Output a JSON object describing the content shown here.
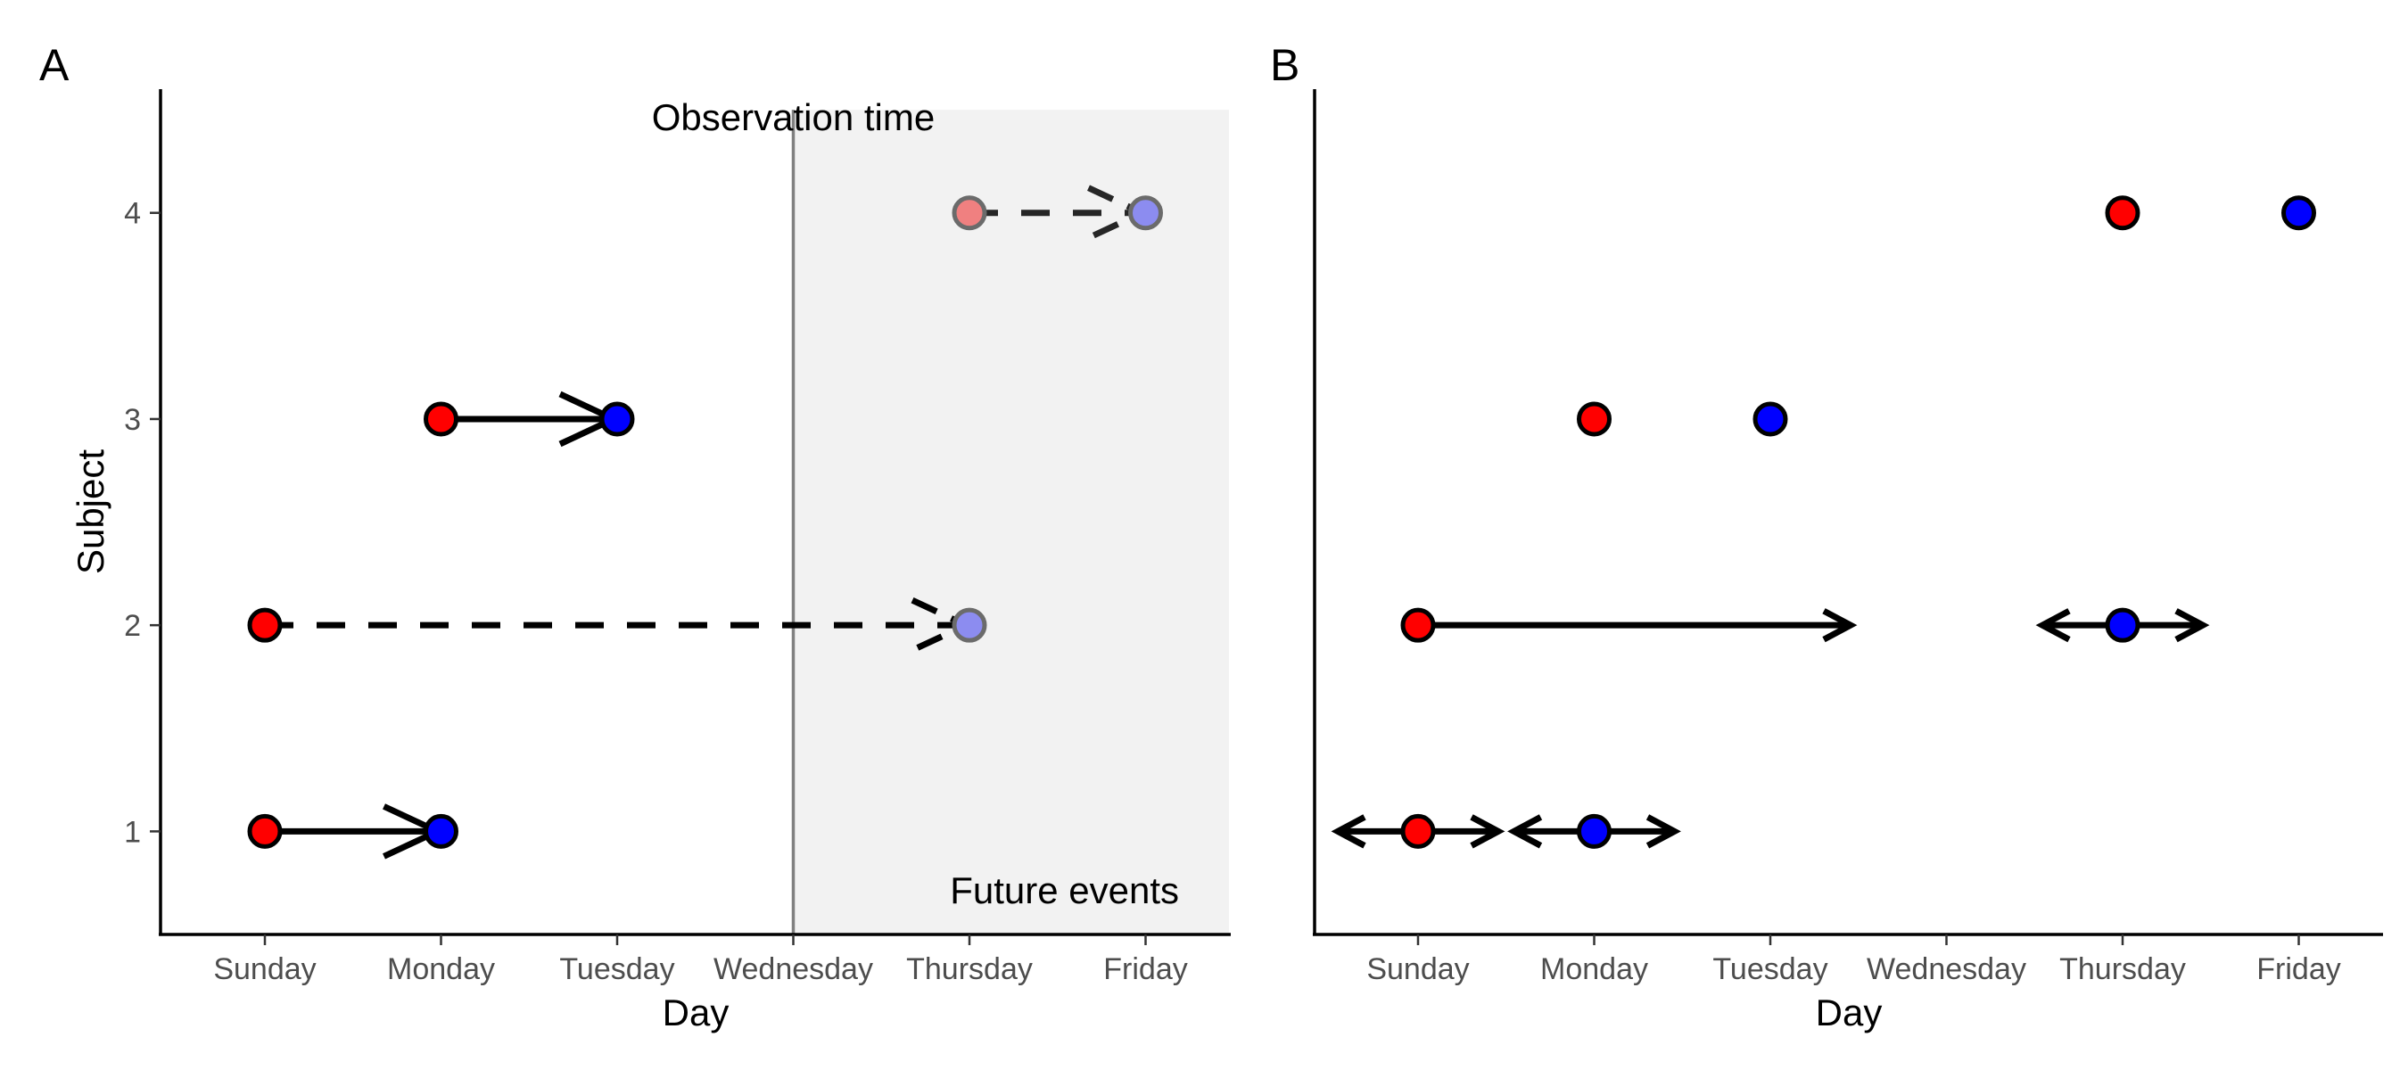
{
  "chart_data": [
    {
      "panel": "A",
      "type": "scatter",
      "xlabel": "Day",
      "ylabel": "Subject",
      "categories": [
        "Sunday",
        "Monday",
        "Tuesday",
        "Wednesday",
        "Thursday",
        "Friday"
      ],
      "yticks": [
        1,
        2,
        3,
        4
      ],
      "ylim": [
        0.5,
        4.6
      ],
      "observation_time": "Wednesday",
      "annotations": {
        "observation": "Observation time",
        "future": "Future events"
      },
      "points": [
        {
          "subject": 1,
          "day": "Sunday",
          "event": "start",
          "future": false
        },
        {
          "subject": 1,
          "day": "Monday",
          "event": "end",
          "future": false
        },
        {
          "subject": 2,
          "day": "Sunday",
          "event": "start",
          "future": false
        },
        {
          "subject": 2,
          "day": "Thursday",
          "event": "end",
          "future": true
        },
        {
          "subject": 3,
          "day": "Monday",
          "event": "start",
          "future": false
        },
        {
          "subject": 3,
          "day": "Tuesday",
          "event": "end",
          "future": false
        },
        {
          "subject": 4,
          "day": "Thursday",
          "event": "start",
          "future": true
        },
        {
          "subject": 4,
          "day": "Friday",
          "event": "end",
          "future": true
        }
      ],
      "arrows": [
        {
          "subject": 1,
          "from": "Sunday",
          "to": "Monday",
          "style": "solid"
        },
        {
          "subject": 2,
          "from": "Sunday",
          "to": "Thursday",
          "style": "dashed"
        },
        {
          "subject": 3,
          "from": "Monday",
          "to": "Tuesday",
          "style": "solid"
        },
        {
          "subject": 4,
          "from": "Thursday",
          "to": "Friday",
          "style": "dashed"
        }
      ]
    },
    {
      "panel": "B",
      "type": "scatter",
      "xlabel": "Day",
      "ylabel": "",
      "categories": [
        "Sunday",
        "Monday",
        "Tuesday",
        "Wednesday",
        "Thursday",
        "Friday"
      ],
      "ylim": [
        0.5,
        4.6
      ],
      "points": [
        {
          "subject": 1,
          "day": "Sunday",
          "event": "start"
        },
        {
          "subject": 1,
          "day": "Monday",
          "event": "end"
        },
        {
          "subject": 2,
          "day": "Sunday",
          "event": "start"
        },
        {
          "subject": 2,
          "day": "Thursday",
          "event": "end"
        },
        {
          "subject": 3,
          "day": "Monday",
          "event": "start"
        },
        {
          "subject": 3,
          "day": "Tuesday",
          "event": "end"
        },
        {
          "subject": 4,
          "day": "Thursday",
          "event": "start"
        },
        {
          "subject": 4,
          "day": "Friday",
          "event": "end"
        }
      ],
      "intervals": [
        {
          "subject": 1,
          "around": "Sunday",
          "kind": "two-sided"
        },
        {
          "subject": 1,
          "around": "Monday",
          "kind": "two-sided"
        },
        {
          "subject": 2,
          "from": "Sunday",
          "to_beyond": "Tuesday",
          "kind": "right"
        },
        {
          "subject": 2,
          "around": "Thursday",
          "kind": "two-sided"
        }
      ]
    }
  ],
  "colors": {
    "start": "#ff0000",
    "end": "#0000ff",
    "start_future": "#f08080",
    "end_future": "#8c8cf0",
    "future_region": "#f2f2f2",
    "observation_line": "#808080",
    "arrow": "#000000",
    "arrow_future": "#262626"
  }
}
